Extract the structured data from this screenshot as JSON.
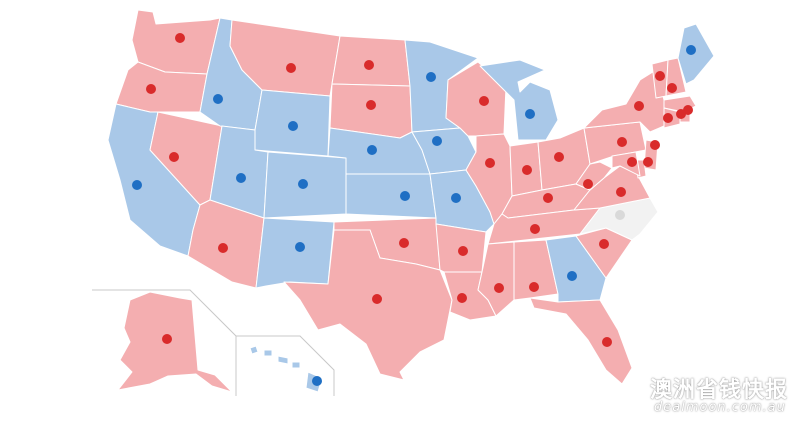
{
  "colors": {
    "rep_fill": "#f4aeb0",
    "dem_fill": "#a9c8e8",
    "undecided_fill": "#f2f2f2",
    "rep_dot": "#d92b2b",
    "dem_dot": "#1f6fc4",
    "undecided_dot": "#d9d9d9"
  },
  "states": [
    {
      "id": "WA",
      "party": "rep"
    },
    {
      "id": "OR",
      "party": "rep"
    },
    {
      "id": "CA",
      "party": "dem"
    },
    {
      "id": "NV",
      "party": "rep"
    },
    {
      "id": "ID",
      "party": "dem"
    },
    {
      "id": "MT",
      "party": "rep"
    },
    {
      "id": "WY",
      "party": "dem"
    },
    {
      "id": "UT",
      "party": "dem"
    },
    {
      "id": "AZ",
      "party": "rep"
    },
    {
      "id": "CO",
      "party": "dem"
    },
    {
      "id": "NM",
      "party": "dem"
    },
    {
      "id": "ND",
      "party": "rep"
    },
    {
      "id": "SD",
      "party": "rep"
    },
    {
      "id": "NE",
      "party": "dem"
    },
    {
      "id": "KS",
      "party": "dem"
    },
    {
      "id": "OK",
      "party": "rep"
    },
    {
      "id": "TX",
      "party": "rep"
    },
    {
      "id": "MN",
      "party": "dem"
    },
    {
      "id": "IA",
      "party": "dem"
    },
    {
      "id": "MO",
      "party": "dem"
    },
    {
      "id": "AR",
      "party": "rep"
    },
    {
      "id": "LA",
      "party": "rep"
    },
    {
      "id": "WI",
      "party": "rep"
    },
    {
      "id": "MI",
      "party": "dem"
    },
    {
      "id": "IL",
      "party": "rep"
    },
    {
      "id": "IN",
      "party": "rep"
    },
    {
      "id": "OH",
      "party": "rep"
    },
    {
      "id": "KY",
      "party": "rep"
    },
    {
      "id": "TN",
      "party": "rep"
    },
    {
      "id": "MS",
      "party": "rep"
    },
    {
      "id": "AL",
      "party": "rep"
    },
    {
      "id": "GA",
      "party": "dem"
    },
    {
      "id": "FL",
      "party": "rep"
    },
    {
      "id": "SC",
      "party": "rep"
    },
    {
      "id": "NC",
      "party": "undecided"
    },
    {
      "id": "VA",
      "party": "rep"
    },
    {
      "id": "WV",
      "party": "rep"
    },
    {
      "id": "PA",
      "party": "rep"
    },
    {
      "id": "NY",
      "party": "rep"
    },
    {
      "id": "VT",
      "party": "rep"
    },
    {
      "id": "NH",
      "party": "rep"
    },
    {
      "id": "ME",
      "party": "dem"
    },
    {
      "id": "MA",
      "party": "rep"
    },
    {
      "id": "RI",
      "party": "rep"
    },
    {
      "id": "CT",
      "party": "rep"
    },
    {
      "id": "NJ",
      "party": "rep"
    },
    {
      "id": "DE",
      "party": "rep"
    },
    {
      "id": "MD",
      "party": "rep"
    },
    {
      "id": "AK",
      "party": "rep"
    },
    {
      "id": "HI",
      "party": "dem"
    }
  ],
  "watermark": {
    "chinese": "澳洲省钱快报",
    "url": "dealmoon.com.au"
  }
}
